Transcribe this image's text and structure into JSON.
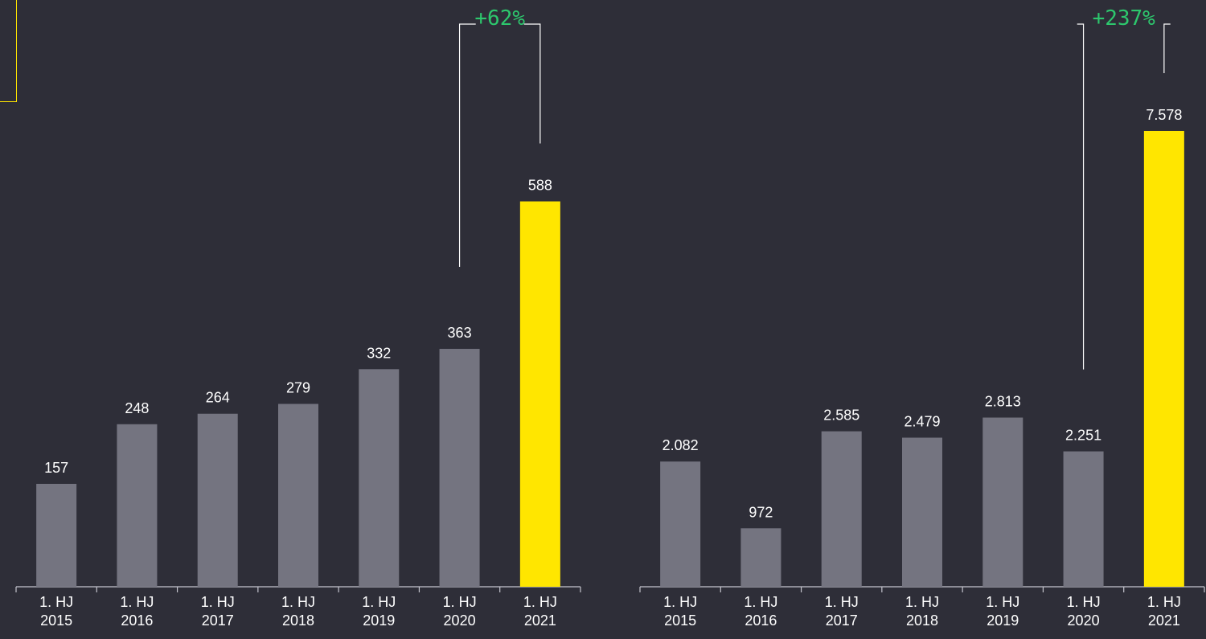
{
  "colors": {
    "background": "#2e2e38",
    "bar_default": "#747480",
    "bar_highlight": "#ffe600",
    "axis": "#c4c4cd",
    "bracket": "#ffffff",
    "growth_text": "#2dc76d",
    "label_text": "#ffffff",
    "accent_frame": "#ffe600"
  },
  "chart_data": [
    {
      "type": "bar",
      "categories": [
        "1. HJ 2015",
        "1. HJ 2016",
        "1. HJ 2017",
        "1. HJ 2018",
        "1. HJ 2019",
        "1. HJ 2020",
        "1. HJ 2021"
      ],
      "category_lines": [
        [
          "1. HJ",
          "2015"
        ],
        [
          "1. HJ",
          "2016"
        ],
        [
          "1. HJ",
          "2017"
        ],
        [
          "1. HJ",
          "2018"
        ],
        [
          "1. HJ",
          "2019"
        ],
        [
          "1. HJ",
          "2020"
        ],
        [
          "1. HJ",
          "2021"
        ]
      ],
      "values": [
        157,
        248,
        264,
        279,
        332,
        363,
        588
      ],
      "value_labels": [
        "157",
        "248",
        "264",
        "279",
        "332",
        "363",
        "588"
      ],
      "highlight_index": 6,
      "growth": {
        "label": "+62%",
        "from_index": 5,
        "to_index": 6
      },
      "ylim": [
        0,
        780
      ],
      "grid": false,
      "title": "",
      "xlabel": "",
      "ylabel": ""
    },
    {
      "type": "bar",
      "categories": [
        "1. HJ 2015",
        "1. HJ 2016",
        "1. HJ 2017",
        "1. HJ 2018",
        "1. HJ 2019",
        "1. HJ 2020",
        "1. HJ 2021"
      ],
      "category_lines": [
        [
          "1. HJ",
          "2015"
        ],
        [
          "1. HJ",
          "2016"
        ],
        [
          "1. HJ",
          "2017"
        ],
        [
          "1. HJ",
          "2018"
        ],
        [
          "1. HJ",
          "2019"
        ],
        [
          "1. HJ",
          "2020"
        ],
        [
          "1. HJ",
          "2021"
        ]
      ],
      "values": [
        2082,
        972,
        2585,
        2479,
        2813,
        2251,
        7578
      ],
      "value_labels": [
        "2.082",
        "972",
        "2.585",
        "2.479",
        "2.813",
        "2.251",
        "7.578"
      ],
      "highlight_index": 6,
      "growth": {
        "label": "+237%",
        "from_index": 5,
        "to_index": 6
      },
      "ylim": [
        0,
        8500
      ],
      "grid": false,
      "title": "",
      "xlabel": "",
      "ylabel": ""
    }
  ]
}
